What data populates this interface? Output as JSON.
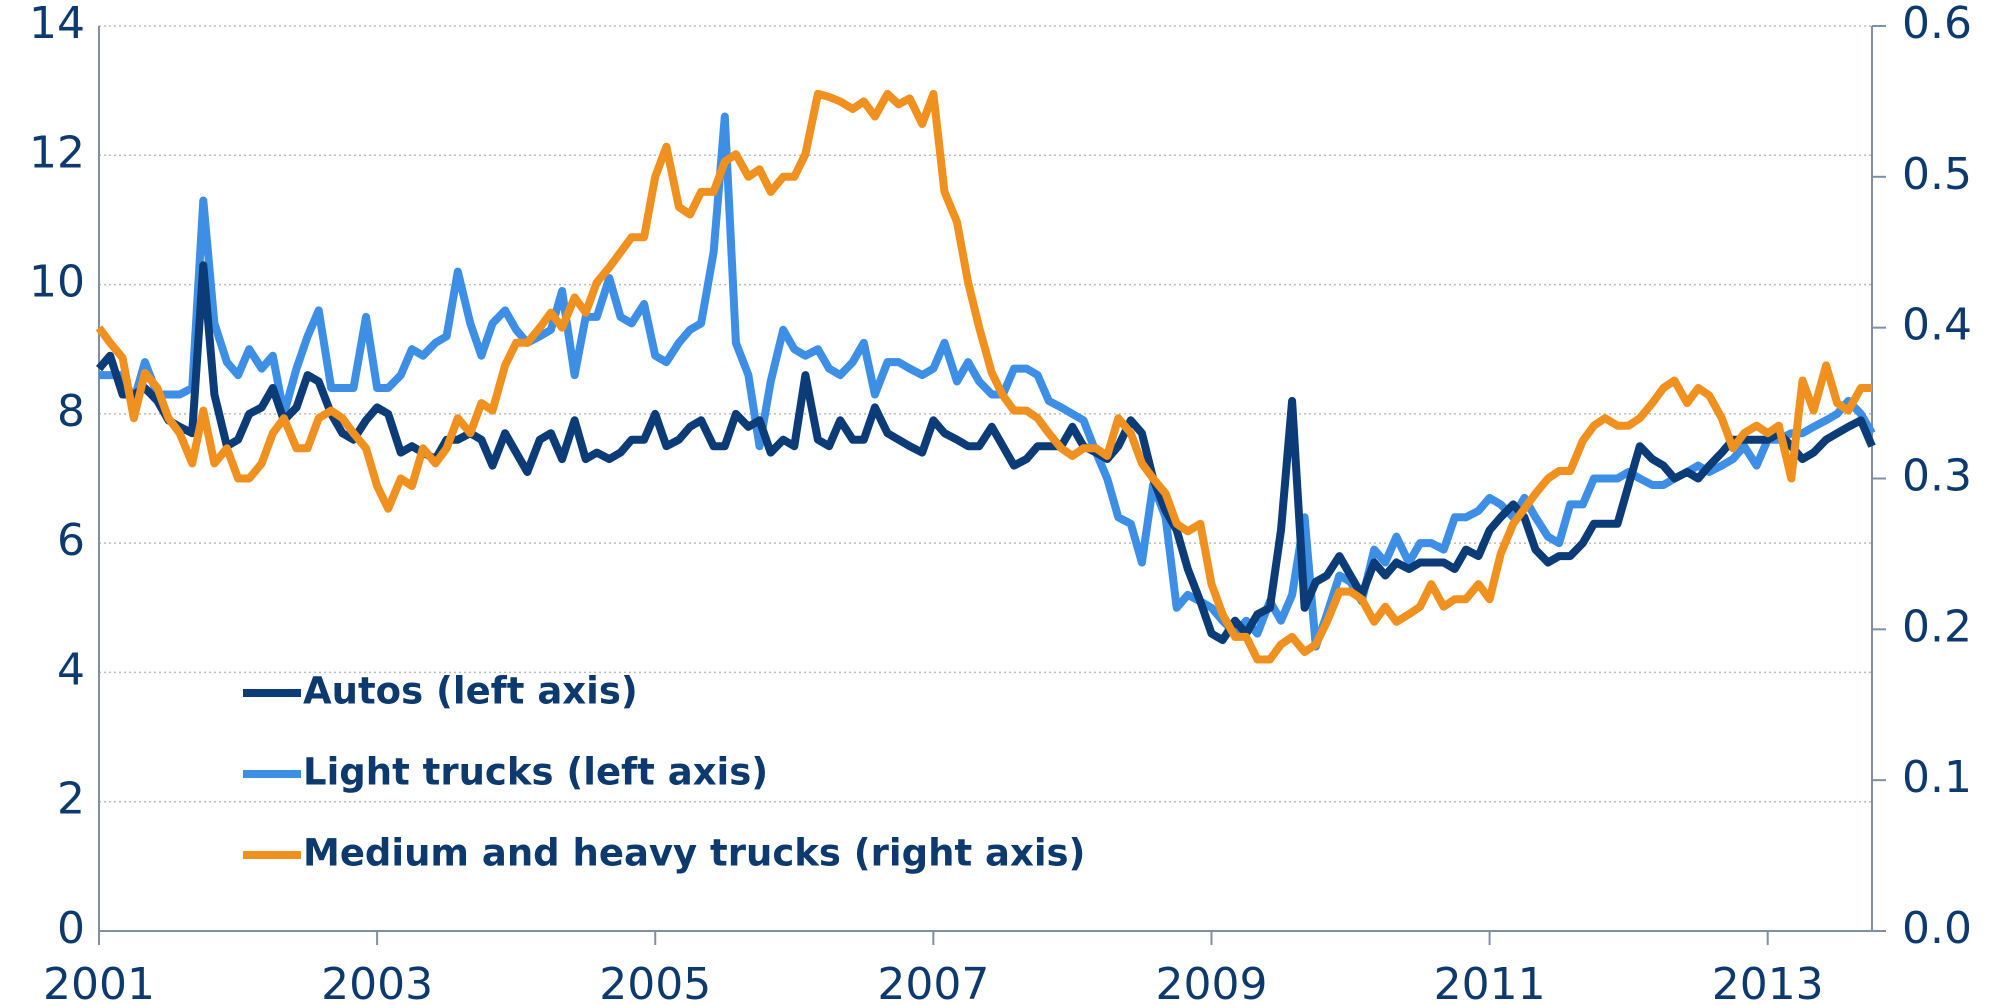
{
  "chart_data": {
    "type": "line",
    "x": [
      2001,
      2001.08,
      2001.17,
      2001.25,
      2001.33,
      2001.42,
      2001.5,
      2001.58,
      2001.67,
      2001.75,
      2001.83,
      2001.92,
      2002,
      2002.08,
      2002.17,
      2002.25,
      2002.33,
      2002.42,
      2002.5,
      2002.58,
      2002.67,
      2002.75,
      2002.83,
      2002.92,
      2003,
      2003.08,
      2003.17,
      2003.25,
      2003.33,
      2003.42,
      2003.5,
      2003.58,
      2003.67,
      2003.75,
      2003.83,
      2003.92,
      2004,
      2004.08,
      2004.17,
      2004.25,
      2004.33,
      2004.42,
      2004.5,
      2004.58,
      2004.67,
      2004.75,
      2004.83,
      2004.92,
      2005,
      2005.08,
      2005.17,
      2005.25,
      2005.33,
      2005.42,
      2005.5,
      2005.58,
      2005.67,
      2005.75,
      2005.83,
      2005.92,
      2006,
      2006.08,
      2006.17,
      2006.25,
      2006.33,
      2006.42,
      2006.5,
      2006.58,
      2006.67,
      2006.75,
      2006.83,
      2006.92,
      2007,
      2007.08,
      2007.17,
      2007.25,
      2007.33,
      2007.42,
      2007.5,
      2007.58,
      2007.67,
      2007.75,
      2007.83,
      2007.92,
      2008,
      2008.08,
      2008.17,
      2008.25,
      2008.33,
      2008.42,
      2008.5,
      2008.58,
      2008.67,
      2008.75,
      2008.83,
      2008.92,
      2009,
      2009.08,
      2009.17,
      2009.25,
      2009.33,
      2009.42,
      2009.5,
      2009.58,
      2009.67,
      2009.75,
      2009.83,
      2009.92,
      2010,
      2010.08,
      2010.17,
      2010.25,
      2010.33,
      2010.42,
      2010.5,
      2010.58,
      2010.67,
      2010.75,
      2010.83,
      2010.92,
      2011,
      2011.08,
      2011.17,
      2011.25,
      2011.33,
      2011.42,
      2011.5,
      2011.58,
      2011.67,
      2011.75,
      2011.83,
      2011.92,
      2012,
      2012.08,
      2012.17,
      2012.25,
      2012.33,
      2012.42,
      2012.5,
      2012.58,
      2012.67,
      2012.75,
      2012.83,
      2012.92,
      2013,
      2013.08,
      2013.17,
      2013.25,
      2013.33,
      2013.42,
      2013.5,
      2013.58,
      2013.67,
      2013.75
    ],
    "series": [
      {
        "name": "Autos (left axis)",
        "color": "#0c3c78",
        "axis": "y",
        "values": [
          8.7,
          8.9,
          8.3,
          8.3,
          8.4,
          8.2,
          7.9,
          7.8,
          7.7,
          10.3,
          8.3,
          7.5,
          7.6,
          8.0,
          8.1,
          8.4,
          7.9,
          8.1,
          8.6,
          8.5,
          8.0,
          7.7,
          7.6,
          7.9,
          8.1,
          8.0,
          7.4,
          7.5,
          7.4,
          7.3,
          7.6,
          7.6,
          7.7,
          7.6,
          7.2,
          7.7,
          7.4,
          7.1,
          7.6,
          7.7,
          7.3,
          7.9,
          7.3,
          7.4,
          7.3,
          7.4,
          7.6,
          7.6,
          8.0,
          7.5,
          7.6,
          7.8,
          7.9,
          7.5,
          7.5,
          8.0,
          7.8,
          7.9,
          7.4,
          7.6,
          7.5,
          8.6,
          7.6,
          7.5,
          7.9,
          7.6,
          7.6,
          8.1,
          7.7,
          7.6,
          7.5,
          7.4,
          7.9,
          7.7,
          7.6,
          7.5,
          7.5,
          7.8,
          7.5,
          7.2,
          7.3,
          7.5,
          7.5,
          7.5,
          7.8,
          7.5,
          7.4,
          7.3,
          7.5,
          7.9,
          7.7,
          7.0,
          6.5,
          6.2,
          5.6,
          5.1,
          4.6,
          4.5,
          4.8,
          4.6,
          4.9,
          5.0,
          6.2,
          8.2,
          5.0,
          5.4,
          5.5,
          5.8,
          5.5,
          5.2,
          5.7,
          5.5,
          5.7,
          5.6,
          5.7,
          5.7,
          5.7,
          5.6,
          5.9,
          5.8,
          6.2,
          6.4,
          6.6,
          6.4,
          5.9,
          5.7,
          5.8,
          5.8,
          6.0,
          6.3,
          6.3,
          6.3,
          6.9,
          7.5,
          7.3,
          7.2,
          7.0,
          7.1,
          7.0,
          7.2,
          7.4,
          7.6,
          7.6,
          7.6,
          7.6,
          7.7,
          7.5,
          7.3,
          7.4,
          7.6,
          7.7,
          7.8,
          7.9,
          7.5
        ]
      },
      {
        "name": "Light trucks (left axis)",
        "color": "#3d8fe6",
        "axis": "y",
        "values": [
          8.6,
          8.6,
          8.6,
          8.2,
          8.8,
          8.3,
          8.3,
          8.3,
          8.4,
          11.3,
          9.4,
          8.8,
          8.6,
          9.0,
          8.7,
          8.9,
          8.0,
          8.7,
          9.2,
          9.6,
          8.4,
          8.4,
          8.4,
          9.5,
          8.4,
          8.4,
          8.6,
          9.0,
          8.9,
          9.1,
          9.2,
          10.2,
          9.4,
          8.9,
          9.4,
          9.6,
          9.3,
          9.1,
          9.2,
          9.3,
          9.9,
          8.6,
          9.5,
          9.5,
          10.1,
          9.5,
          9.4,
          9.7,
          8.9,
          8.8,
          9.1,
          9.3,
          9.4,
          10.5,
          12.6,
          9.1,
          8.6,
          7.5,
          8.5,
          9.3,
          9.0,
          8.9,
          9.0,
          8.7,
          8.6,
          8.8,
          9.1,
          8.3,
          8.8,
          8.8,
          8.7,
          8.6,
          8.7,
          9.1,
          8.5,
          8.8,
          8.5,
          8.3,
          8.3,
          8.7,
          8.7,
          8.6,
          8.2,
          8.1,
          8.0,
          7.9,
          7.4,
          7.0,
          6.4,
          6.3,
          5.7,
          6.9,
          6.4,
          5.0,
          5.2,
          5.1,
          5.0,
          4.8,
          4.6,
          4.8,
          4.6,
          5.1,
          4.8,
          5.2,
          6.4,
          4.4,
          4.9,
          5.5,
          5.4,
          5.1,
          5.9,
          5.7,
          6.1,
          5.7,
          6.0,
          6.0,
          5.9,
          6.4,
          6.4,
          6.5,
          6.7,
          6.6,
          6.4,
          6.7,
          6.4,
          6.1,
          6.0,
          6.6,
          6.6,
          7.0,
          7.0,
          7.0,
          7.1,
          7.0,
          6.9,
          6.9,
          7.0,
          7.1,
          7.2,
          7.1,
          7.2,
          7.3,
          7.5,
          7.2,
          7.6,
          7.6,
          7.7,
          7.7,
          7.8,
          7.9,
          8.0,
          8.2,
          8.0,
          7.7
        ]
      },
      {
        "name": "Medium and heavy trucks (right axis)",
        "color": "#f0901e",
        "axis": "y2",
        "values": [
          0.4,
          0.39,
          0.38,
          0.34,
          0.37,
          0.36,
          0.34,
          0.33,
          0.31,
          0.345,
          0.31,
          0.32,
          0.3,
          0.3,
          0.31,
          0.33,
          0.34,
          0.32,
          0.32,
          0.34,
          0.345,
          0.34,
          0.33,
          0.32,
          0.295,
          0.28,
          0.3,
          0.295,
          0.32,
          0.31,
          0.32,
          0.34,
          0.33,
          0.35,
          0.345,
          0.375,
          0.39,
          0.39,
          0.4,
          0.41,
          0.4,
          0.42,
          0.41,
          0.43,
          0.44,
          0.45,
          0.46,
          0.46,
          0.5,
          0.52,
          0.48,
          0.475,
          0.49,
          0.49,
          0.51,
          0.515,
          0.5,
          0.505,
          0.49,
          0.5,
          0.5,
          0.515,
          0.555,
          0.553,
          0.55,
          0.545,
          0.55,
          0.54,
          0.555,
          0.548,
          0.552,
          0.535,
          0.555,
          0.49,
          0.47,
          0.43,
          0.4,
          0.37,
          0.355,
          0.345,
          0.345,
          0.34,
          0.33,
          0.32,
          0.315,
          0.32,
          0.32,
          0.315,
          0.34,
          0.33,
          0.31,
          0.3,
          0.29,
          0.27,
          0.265,
          0.27,
          0.23,
          0.21,
          0.195,
          0.195,
          0.18,
          0.18,
          0.19,
          0.195,
          0.185,
          0.19,
          0.205,
          0.225,
          0.225,
          0.22,
          0.205,
          0.215,
          0.205,
          0.21,
          0.215,
          0.23,
          0.215,
          0.22,
          0.22,
          0.23,
          0.22,
          0.25,
          0.27,
          0.28,
          0.29,
          0.3,
          0.305,
          0.305,
          0.325,
          0.335,
          0.34,
          0.335,
          0.335,
          0.34,
          0.35,
          0.36,
          0.365,
          0.35,
          0.36,
          0.355,
          0.34,
          0.32,
          0.33,
          0.335,
          0.33,
          0.335,
          0.3,
          0.365,
          0.345,
          0.375,
          0.35,
          0.345,
          0.36,
          0.36
        ]
      }
    ],
    "xlim": [
      2001,
      2013.75
    ],
    "xticks": [
      2001,
      2003,
      2005,
      2007,
      2009,
      2011,
      2013
    ],
    "ylim": [
      0,
      14
    ],
    "yticks": [
      0,
      2,
      4,
      6,
      8,
      10,
      12,
      14
    ],
    "y2lim": [
      0,
      0.6
    ],
    "y2ticks": [
      {
        "value": 0,
        "label": "0.0"
      },
      0.1,
      0.2,
      0.3,
      0.4,
      0.5,
      0.6
    ],
    "grid": true,
    "legend": "lower left"
  }
}
